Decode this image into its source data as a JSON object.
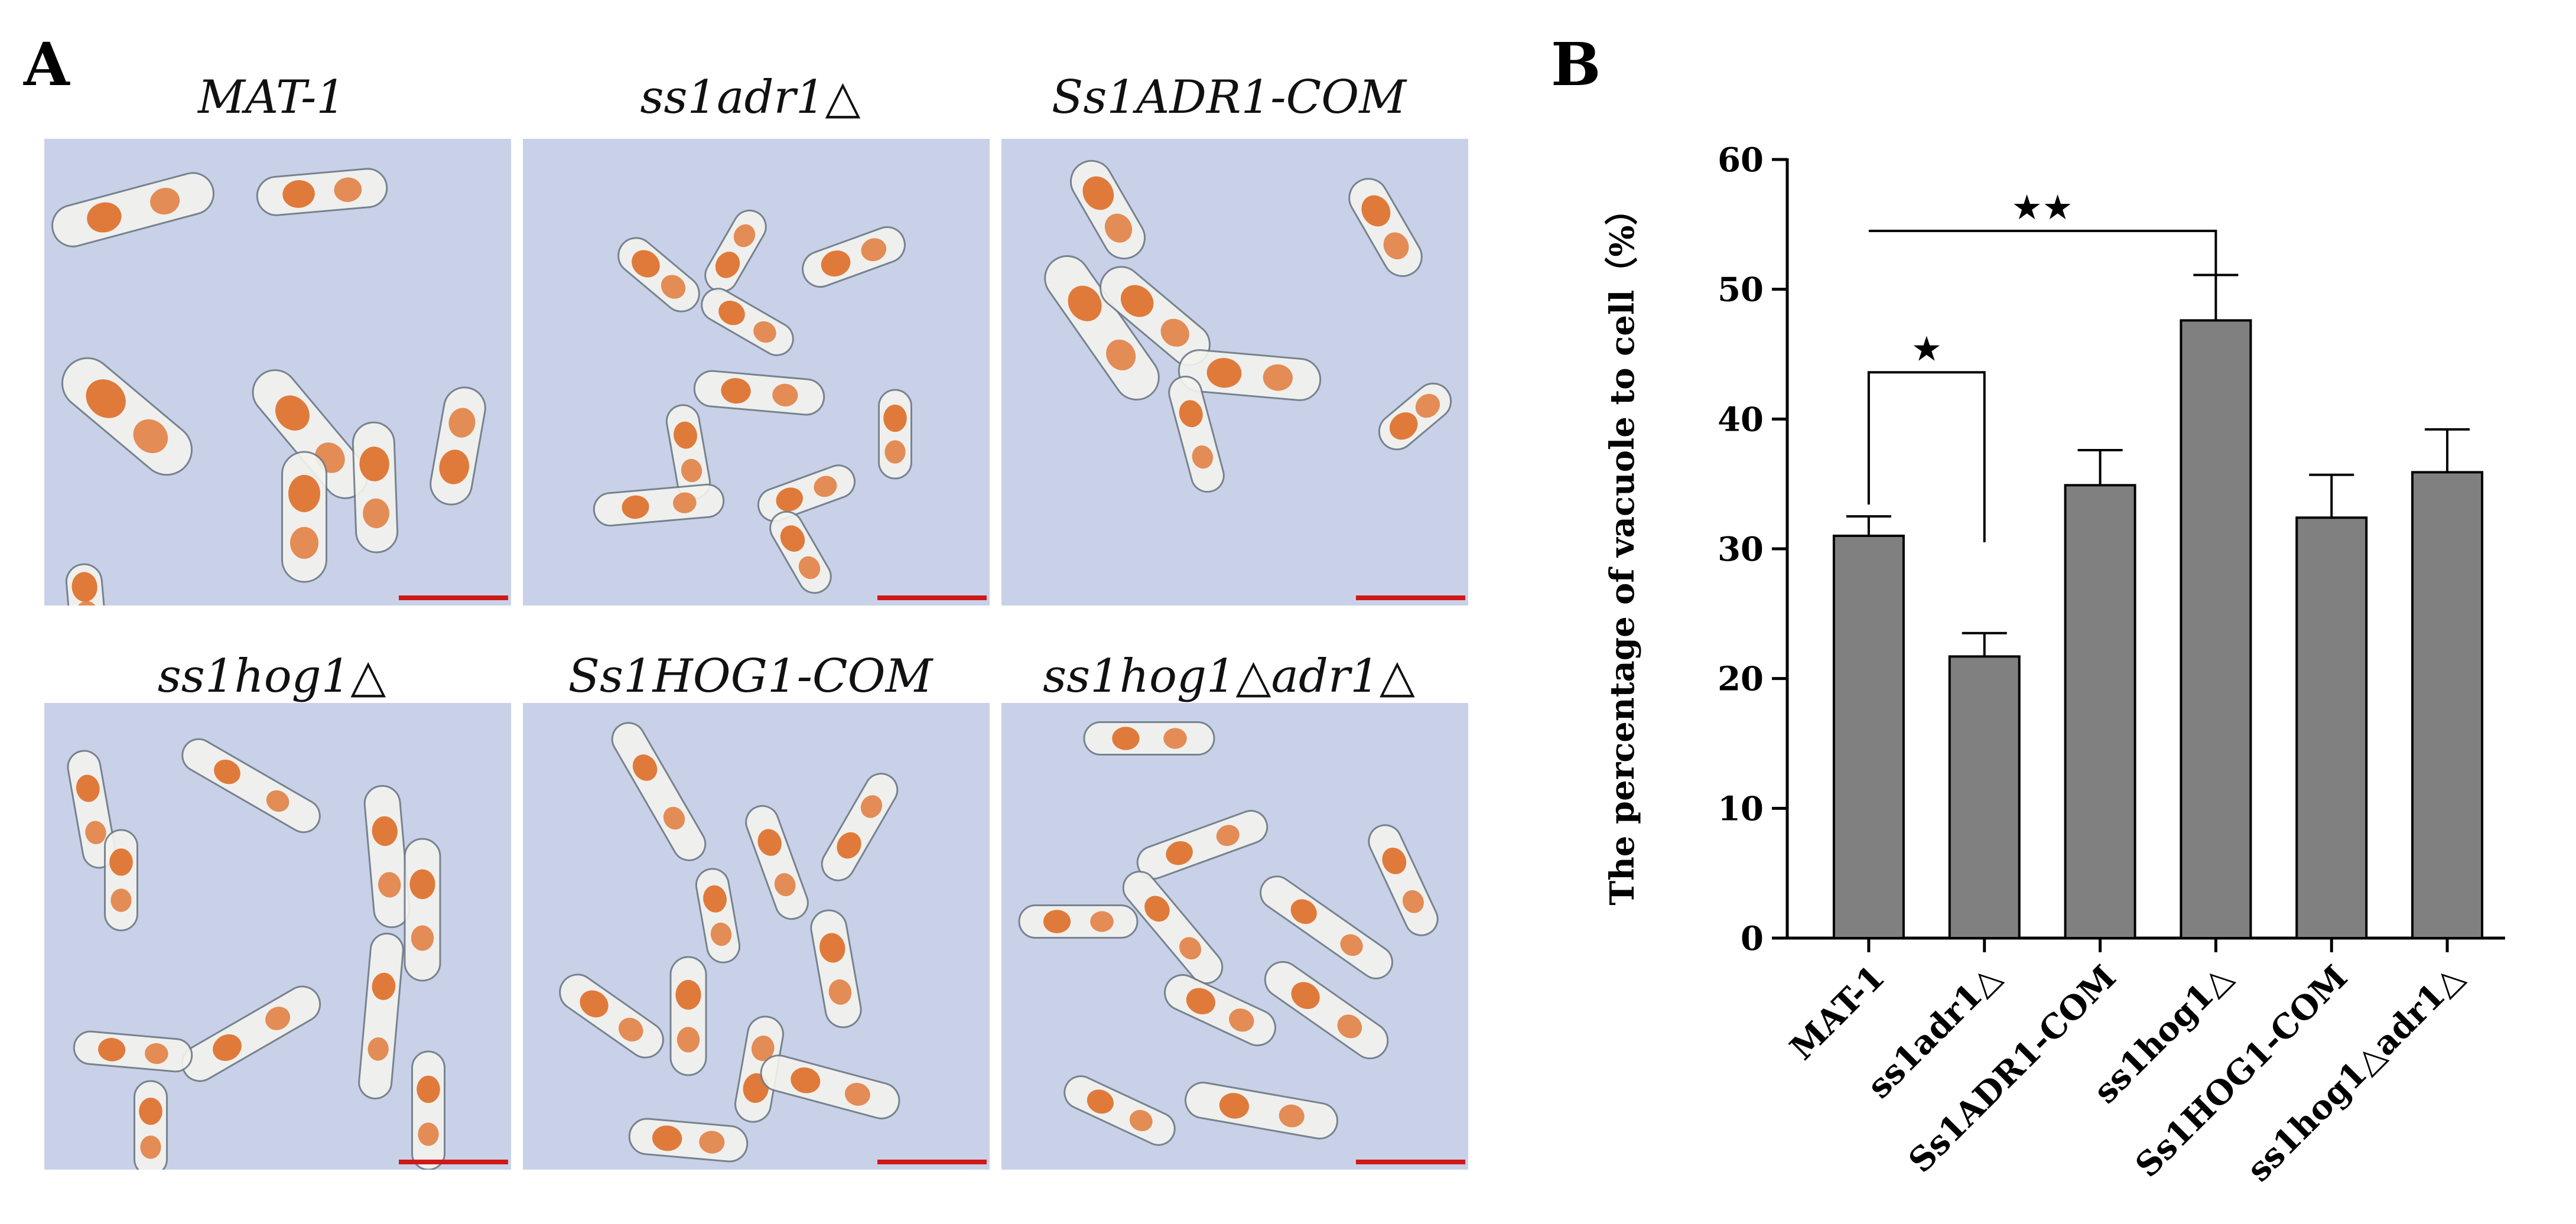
{
  "panel_a": {
    "letter": "A",
    "images": [
      {
        "title": "MAT-1"
      },
      {
        "title": "ss1adr1△"
      },
      {
        "title": "Ss1ADR1-COM"
      },
      {
        "title": "ss1hog1△"
      },
      {
        "title": "Ss1HOG1-COM"
      },
      {
        "title": "ss1hog1△adr1△"
      }
    ],
    "colors": {
      "background": "#c9d1e8",
      "vacuole": "#e07a3a",
      "cell_wall": "#f4f4ef",
      "scale_bar": "#d01818"
    }
  },
  "panel_b": {
    "letter": "B"
  },
  "chart_data": {
    "type": "bar",
    "categories": [
      "MAT-1",
      "ss1adr1△",
      "Ss1ADR1-COM",
      "ss1hog1△",
      "Ss1HOG1-COM",
      "ss1hog1△adr1△"
    ],
    "values": [
      31,
      21.7,
      34.9,
      47.6,
      32.4,
      35.9
    ],
    "errors": [
      1.5,
      1.8,
      2.7,
      3.5,
      3.3,
      3.3
    ],
    "ylabel": "The percentage of vacuole to cell（%）",
    "xlabel": "",
    "ylim": [
      0,
      60
    ],
    "yticks": [
      0,
      10,
      20,
      30,
      40,
      50,
      60
    ],
    "bar_color": "#808080",
    "grid": false,
    "significance": [
      {
        "from": "MAT-1",
        "to": "ss1adr1△",
        "label": "★"
      },
      {
        "from": "MAT-1",
        "to": "ss1hog1△",
        "label": "★★"
      }
    ]
  }
}
